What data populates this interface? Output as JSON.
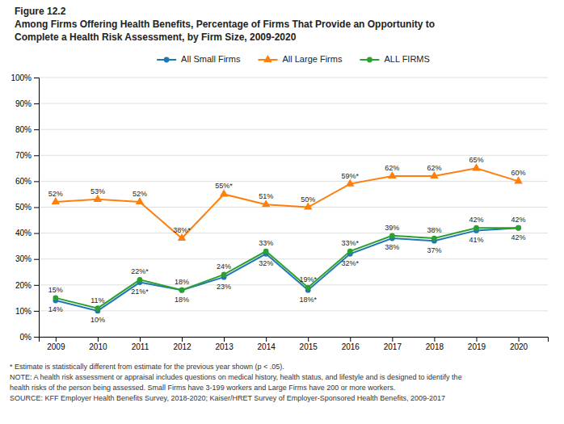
{
  "chart_data": {
    "type": "line",
    "title": [
      "Figure 12.2",
      "Among Firms Offering Health Benefits, Percentage of Firms That Provide an Opportunity to",
      "Complete a Health Risk Assessment, by Firm Size, 2009-2020"
    ],
    "x": [
      2009,
      2010,
      2011,
      2012,
      2013,
      2014,
      2015,
      2016,
      2017,
      2018,
      2019,
      2020
    ],
    "series": [
      {
        "name": "All Small Firms",
        "marker": "circle",
        "values": [
          14,
          10,
          21,
          18,
          23,
          32,
          18,
          32,
          38,
          37,
          41,
          42
        ],
        "value_labels": [
          "14%",
          "10%",
          "21%*",
          "18%",
          "23%",
          "32%",
          "18%*",
          "32%*",
          "38%",
          "37%",
          "41%",
          "42%"
        ]
      },
      {
        "name": "All Large Firms",
        "marker": "triangle",
        "values": [
          52,
          53,
          52,
          38,
          55,
          51,
          50,
          59,
          62,
          62,
          65,
          60
        ],
        "value_labels": [
          "52%",
          "53%",
          "52%",
          "38%*",
          "55%*",
          "51%",
          "50%",
          "59%*",
          "62%",
          "62%",
          "65%",
          "60%"
        ]
      },
      {
        "name": "ALL FIRMS",
        "marker": "circle",
        "values": [
          15,
          11,
          22,
          18,
          24,
          33,
          19,
          33,
          39,
          38,
          42,
          42
        ],
        "value_labels": [
          "15%",
          "11%",
          "22%*",
          "18%",
          "24%",
          "33%",
          "19%*",
          "33%*",
          "39%",
          "38%",
          "42%",
          "42%"
        ]
      }
    ],
    "xlim": [
      2008.6,
      2020.7
    ],
    "xticks": [
      2009,
      2010,
      2011,
      2012,
      2013,
      2014,
      2015,
      2016,
      2017,
      2018,
      2019,
      2020
    ],
    "ylim": [
      0,
      100
    ],
    "yticks": [
      {
        "value": 0,
        "label": "0%"
      },
      {
        "value": 10,
        "label": "10%"
      },
      {
        "value": 20,
        "label": "20%"
      },
      {
        "value": 30,
        "label": "30%"
      },
      {
        "value": 40,
        "label": "40%"
      },
      {
        "value": 50,
        "label": "50%"
      },
      {
        "value": 60,
        "label": "60%"
      },
      {
        "value": 70,
        "label": "70%"
      },
      {
        "value": 80,
        "label": "80%"
      },
      {
        "value": 90,
        "label": "90%"
      },
      {
        "value": 100,
        "label": "100%"
      }
    ],
    "grid": true,
    "legend": "top",
    "data_labels": true,
    "annotations": [
      "* Estimate is statistically different from estimate for the previous year shown (p < .05).",
      "NOTE: A health risk assessment or appraisal includes questions on medical history, health status, and lifestyle and is designed to identify the",
      "health risks of the person being assessed. Small Firms have 3-199 workers and Large Firms have 200 or more workers.",
      "SOURCE: KFF Employer Health Benefits Survey, 2018-2020; Kaiser/HRET Survey of Employer-Sponsored Health Benefits, 2009-2017"
    ]
  }
}
